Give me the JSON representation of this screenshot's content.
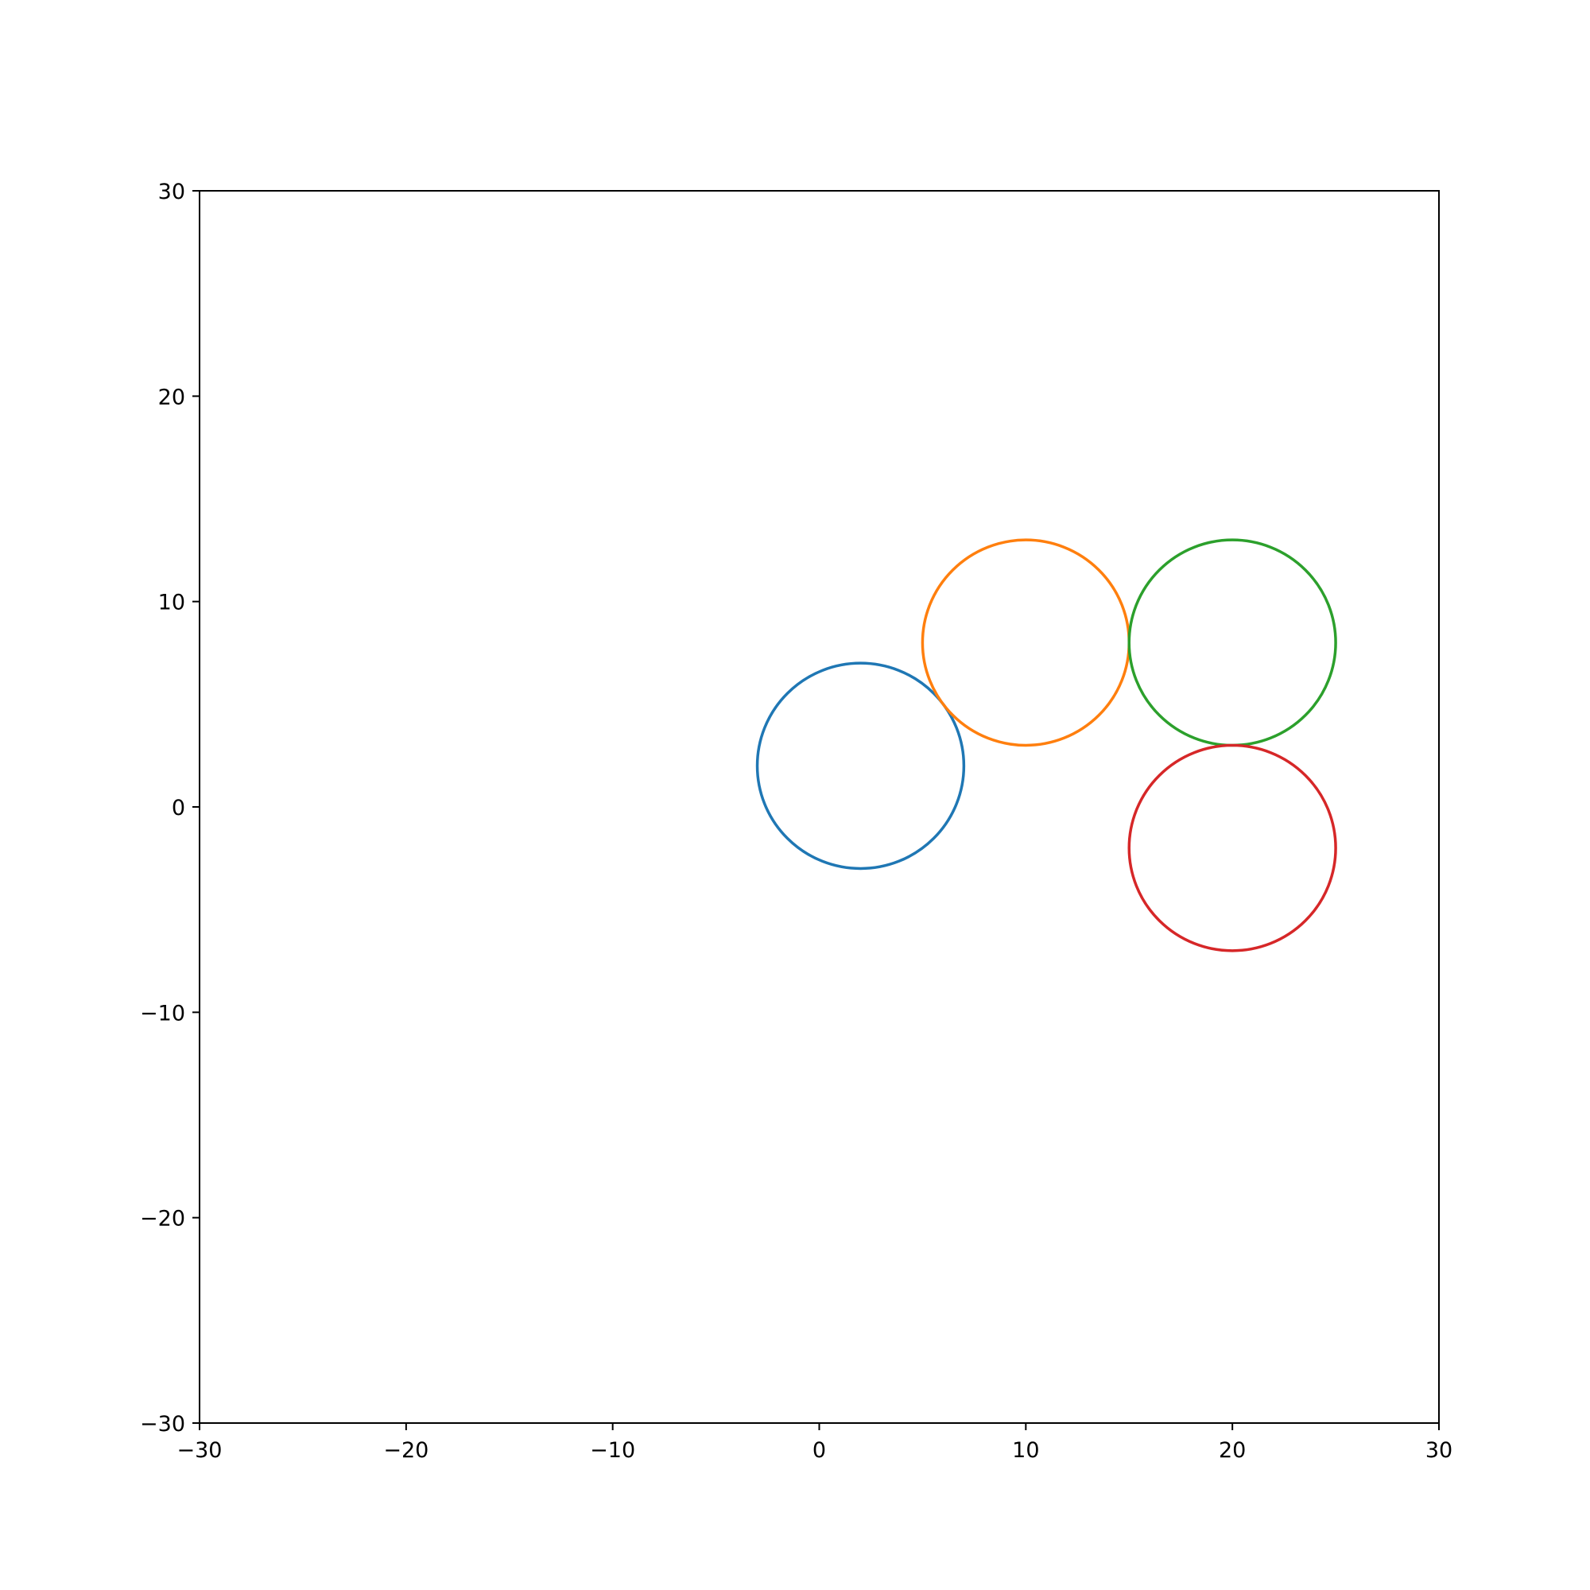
{
  "chart_data": {
    "type": "scatter",
    "title": "",
    "xlabel": "",
    "ylabel": "",
    "xlim": [
      -30,
      30
    ],
    "ylim": [
      -30,
      30
    ],
    "grid": false,
    "x_ticks": [
      -30,
      -20,
      -10,
      0,
      10,
      20,
      30
    ],
    "y_ticks": [
      -30,
      -20,
      -10,
      0,
      10,
      20,
      30
    ],
    "x_tick_labels": [
      "−30",
      "−20",
      "−10",
      "0",
      "10",
      "20",
      "30"
    ],
    "y_tick_labels": [
      "−30",
      "−20",
      "−10",
      "0",
      "10",
      "20",
      "30"
    ],
    "circles": [
      {
        "cx": 2,
        "cy": 2,
        "r": 5,
        "color": "#1f77b4"
      },
      {
        "cx": 10,
        "cy": 8,
        "r": 5,
        "color": "#ff7f0e"
      },
      {
        "cx": 20,
        "cy": 8,
        "r": 5,
        "color": "#2ca02c"
      },
      {
        "cx": 20,
        "cy": -2,
        "r": 5,
        "color": "#d62728"
      }
    ]
  }
}
